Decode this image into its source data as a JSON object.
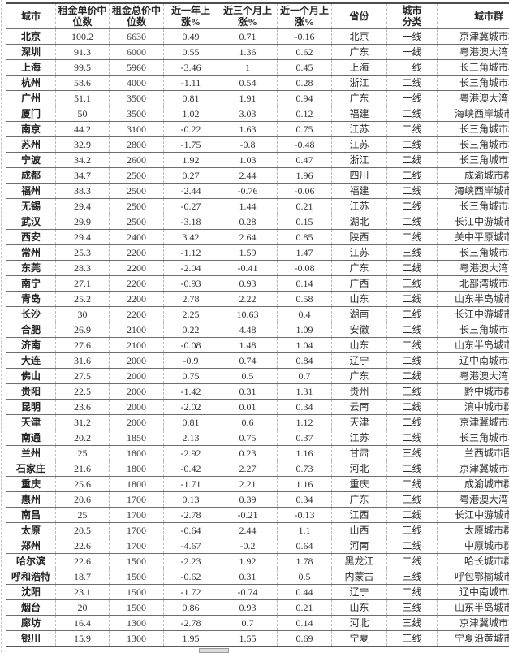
{
  "table": {
    "columns": [
      {
        "key": "city",
        "label": "城市",
        "numeric": false
      },
      {
        "key": "unit_price",
        "label": "租金单价中\n位数",
        "numeric": true
      },
      {
        "key": "total_price",
        "label": "租金总价中\n位数",
        "numeric": true
      },
      {
        "key": "yoy",
        "label": "近一年上\n涨%",
        "numeric": true
      },
      {
        "key": "m3",
        "label": "近三个月上\n涨%",
        "numeric": true
      },
      {
        "key": "m1",
        "label": "近一个月上\n涨%",
        "numeric": true
      },
      {
        "key": "province",
        "label": "省份",
        "numeric": false
      },
      {
        "key": "tier",
        "label": "城市\n分类",
        "numeric": false
      },
      {
        "key": "cluster",
        "label": "城市群",
        "numeric": false
      }
    ],
    "rows": [
      [
        "北京",
        "100.2",
        "6630",
        "0.49",
        "0.71",
        "-0.16",
        "北京",
        "一线",
        "京津冀城市群"
      ],
      [
        "深圳",
        "91.3",
        "6000",
        "0.55",
        "1.36",
        "0.62",
        "广东",
        "一线",
        "粤港澳大湾区"
      ],
      [
        "上海",
        "99.5",
        "5960",
        "-3.46",
        "1",
        "0.45",
        "上海",
        "一线",
        "长三角城市群"
      ],
      [
        "杭州",
        "58.6",
        "4000",
        "-1.11",
        "0.54",
        "0.28",
        "浙江",
        "二线",
        "长三角城市群"
      ],
      [
        "广州",
        "51.1",
        "3500",
        "0.81",
        "1.91",
        "0.94",
        "广东",
        "一线",
        "粤港澳大湾区"
      ],
      [
        "厦门",
        "50",
        "3500",
        "1.02",
        "3.03",
        "0.12",
        "福建",
        "二线",
        "海峡西岸城市群"
      ],
      [
        "南京",
        "44.2",
        "3100",
        "-0.22",
        "1.63",
        "0.75",
        "江苏",
        "二线",
        "长三角城市群"
      ],
      [
        "苏州",
        "32.9",
        "2800",
        "-1.75",
        "-0.8",
        "-0.48",
        "江苏",
        "二线",
        "长三角城市群"
      ],
      [
        "宁波",
        "34.2",
        "2600",
        "1.92",
        "1.03",
        "0.47",
        "浙江",
        "二线",
        "长三角城市群"
      ],
      [
        "成都",
        "34.7",
        "2500",
        "0.27",
        "2.44",
        "1.96",
        "四川",
        "二线",
        "成渝城市群"
      ],
      [
        "福州",
        "38.3",
        "2500",
        "-2.44",
        "-0.76",
        "-0.06",
        "福建",
        "二线",
        "海峡西岸城市群"
      ],
      [
        "无锡",
        "29.4",
        "2500",
        "-0.27",
        "1.44",
        "0.21",
        "江苏",
        "二线",
        "长三角城市群"
      ],
      [
        "武汉",
        "29.9",
        "2500",
        "-3.18",
        "0.28",
        "0.15",
        "湖北",
        "二线",
        "长江中游城市群"
      ],
      [
        "西安",
        "29.4",
        "2400",
        "3.42",
        "2.64",
        "0.85",
        "陕西",
        "二线",
        "关中平原城市群"
      ],
      [
        "常州",
        "25.3",
        "2200",
        "-1.12",
        "1.59",
        "1.47",
        "江苏",
        "三线",
        "长三角城市群"
      ],
      [
        "东莞",
        "28.3",
        "2200",
        "-2.04",
        "-0.41",
        "-0.08",
        "广东",
        "二线",
        "粤港澳大湾区"
      ],
      [
        "南宁",
        "27.1",
        "2200",
        "-0.93",
        "0.93",
        "0.14",
        "广西",
        "三线",
        "北部湾城市群"
      ],
      [
        "青岛",
        "25.2",
        "2200",
        "2.78",
        "2.22",
        "0.58",
        "山东",
        "二线",
        "山东半岛城市群"
      ],
      [
        "长沙",
        "30",
        "2200",
        "2.25",
        "10.63",
        "0.4",
        "湖南",
        "二线",
        "长江中游城市群"
      ],
      [
        "合肥",
        "26.9",
        "2100",
        "0.22",
        "4.48",
        "1.09",
        "安徽",
        "二线",
        "长三角城市群"
      ],
      [
        "济南",
        "27.6",
        "2100",
        "-0.08",
        "1.48",
        "1.04",
        "山东",
        "二线",
        "山东半岛城市群"
      ],
      [
        "大连",
        "31.6",
        "2000",
        "-0.9",
        "0.74",
        "0.84",
        "辽宁",
        "二线",
        "辽中南城市群"
      ],
      [
        "佛山",
        "27.5",
        "2000",
        "0.75",
        "0.5",
        "0.7",
        "广东",
        "二线",
        "粤港澳大湾区"
      ],
      [
        "贵阳",
        "22.5",
        "2000",
        "-1.42",
        "0.31",
        "1.31",
        "贵州",
        "三线",
        "黔中城市群"
      ],
      [
        "昆明",
        "23.6",
        "2000",
        "-2.02",
        "0.01",
        "0.34",
        "云南",
        "二线",
        "滇中城市群"
      ],
      [
        "天津",
        "31.2",
        "2000",
        "0.81",
        "0.6",
        "1.12",
        "天津",
        "二线",
        "京津冀城市群"
      ],
      [
        "南通",
        "20.2",
        "1850",
        "2.13",
        "0.75",
        "0.37",
        "江苏",
        "二线",
        "长三角城市群"
      ],
      [
        "兰州",
        "25",
        "1800",
        "-2.92",
        "0.23",
        "1.16",
        "甘肃",
        "三线",
        "兰西城市圈"
      ],
      [
        "石家庄",
        "21.6",
        "1800",
        "-0.42",
        "2.27",
        "0.73",
        "河北",
        "二线",
        "京津冀城市群"
      ],
      [
        "重庆",
        "25.6",
        "1800",
        "-1.71",
        "2.21",
        "1.16",
        "重庆",
        "二线",
        "成渝城市群"
      ],
      [
        "惠州",
        "20.6",
        "1700",
        "0.13",
        "0.39",
        "0.34",
        "广东",
        "三线",
        "粤港澳大湾区"
      ],
      [
        "南昌",
        "25",
        "1700",
        "-2.78",
        "-0.21",
        "-0.13",
        "江西",
        "二线",
        "长江中游城市群"
      ],
      [
        "太原",
        "20.5",
        "1700",
        "-0.64",
        "2.44",
        "1.1",
        "山西",
        "三线",
        "太原城市群"
      ],
      [
        "郑州",
        "22.6",
        "1700",
        "-4.67",
        "-0.2",
        "0.64",
        "河南",
        "二线",
        "中原城市群"
      ],
      [
        "哈尔滨",
        "22.6",
        "1500",
        "-2.23",
        "1.92",
        "1.78",
        "黑龙江",
        "二线",
        "哈长城市群"
      ],
      [
        "呼和浩特",
        "18.7",
        "1500",
        "-0.62",
        "0.31",
        "0.5",
        "内蒙古",
        "三线",
        "呼包鄂榆城市群"
      ],
      [
        "沈阳",
        "23.1",
        "1500",
        "-1.72",
        "-0.74",
        "0.44",
        "辽宁",
        "二线",
        "辽中南城市群"
      ],
      [
        "烟台",
        "20",
        "1500",
        "0.86",
        "0.93",
        "0.21",
        "山东",
        "三线",
        "山东半岛城市群"
      ],
      [
        "廊坊",
        "16.4",
        "1300",
        "-2.78",
        "0.7",
        "0.14",
        "河北",
        "三线",
        "京津冀城市群"
      ],
      [
        "银川",
        "15.9",
        "1300",
        "1.95",
        "1.55",
        "0.69",
        "宁夏",
        "三线",
        "宁夏沿黄城市群"
      ]
    ]
  }
}
